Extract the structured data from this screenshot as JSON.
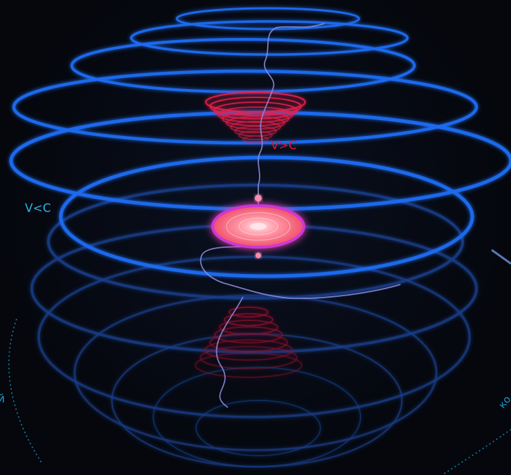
{
  "labels": {
    "inner_region": "V>C",
    "outer_region": "V<C",
    "left_edge_fragment": "й",
    "right_edge_fragment": "ко"
  },
  "colors": {
    "background": "#05070d",
    "outer_rings": "#1f6cf0",
    "outer_rings_glow": "#6fb0ff",
    "lower_rings": "#1a3f8c",
    "inner_vortex": "#e8204a",
    "inner_vortex_lower": "#8a1428",
    "core_disc_fill": "#ff8a9a",
    "core_disc_rim": "#d034d6",
    "thread": "#8a88d8",
    "label_fast": "#e0152c",
    "label_slow": "#27b3e6",
    "dotted_guides": "#1a98c8"
  }
}
